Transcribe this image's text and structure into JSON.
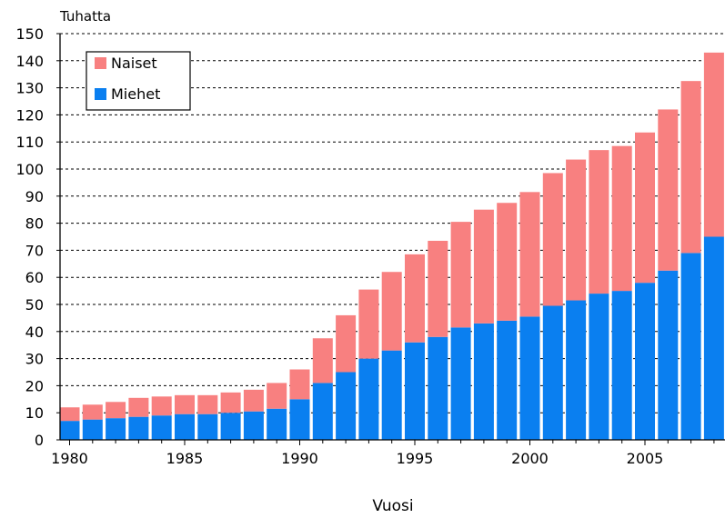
{
  "chart_data": {
    "type": "bar",
    "stacked": true,
    "ylabel": "Tuhatta",
    "xlabel": "Vuosi",
    "ylim": [
      0,
      150
    ],
    "yticks": [
      0,
      10,
      20,
      30,
      40,
      50,
      60,
      70,
      80,
      90,
      100,
      110,
      120,
      130,
      140,
      150
    ],
    "xticks": [
      1980,
      1985,
      1990,
      1995,
      2000,
      2005
    ],
    "grid": "horizontal-dashed",
    "legend_position": "top-left",
    "categories": [
      1980,
      1981,
      1982,
      1983,
      1984,
      1985,
      1986,
      1987,
      1988,
      1989,
      1990,
      1991,
      1992,
      1993,
      1994,
      1995,
      1996,
      1997,
      1998,
      1999,
      2000,
      2001,
      2002,
      2003,
      2004,
      2005,
      2006,
      2007,
      2008
    ],
    "series": [
      {
        "name": "Miehet",
        "color": "#0a7ff0",
        "values": [
          7,
          7.5,
          8,
          8.5,
          9,
          9.5,
          9.5,
          10,
          10.5,
          11.5,
          15,
          21,
          25,
          30,
          33,
          36,
          38,
          41.5,
          43,
          44,
          45.5,
          49.5,
          51.5,
          54,
          55,
          58,
          62.5,
          69,
          75
        ]
      },
      {
        "name": "Naiset",
        "color": "#f88080",
        "values": [
          5,
          5.5,
          6,
          7,
          7,
          7,
          7,
          7.5,
          8,
          9.5,
          11,
          16.5,
          21,
          25.5,
          29,
          32.5,
          35.5,
          39,
          42,
          43.5,
          46,
          49,
          52,
          53,
          53.5,
          55.5,
          59.5,
          63.5,
          68
        ]
      }
    ]
  }
}
